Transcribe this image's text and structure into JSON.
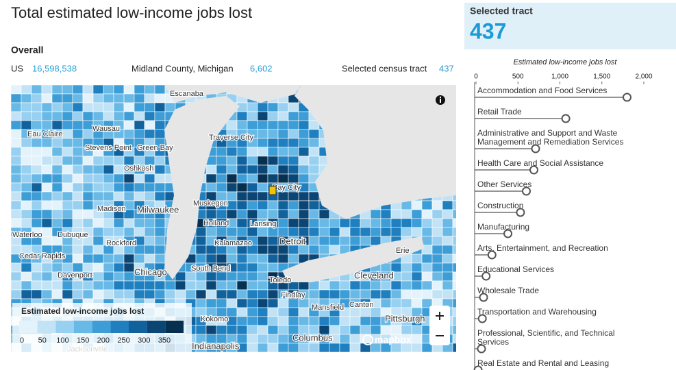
{
  "header": {
    "title": "Total estimated low-income jobs lost"
  },
  "overall": {
    "heading": "Overall",
    "items": [
      {
        "label": "US",
        "value": "16,598,538"
      },
      {
        "label": "Midland County, Michigan",
        "value": "6,602"
      },
      {
        "label": "Selected census tract",
        "value": "437"
      }
    ]
  },
  "selected": {
    "label": "Selected tract",
    "value": "437"
  },
  "map": {
    "legend_title": "Estimated low-income jobs lost",
    "legend_ticks": [
      0,
      50,
      100,
      150,
      200,
      250,
      300,
      350
    ],
    "legend_colors": [
      "#e4f2fb",
      "#c2e3f6",
      "#97d0f0",
      "#69b9e6",
      "#3d9dd6",
      "#1f7fbf",
      "#11619c",
      "#0a4574",
      "#062f50"
    ],
    "attribution": "mapbox",
    "cities": [
      "Escanaba",
      "Eau Claire",
      "Wausau",
      "Stevens Point",
      "Green Bay",
      "Oshkosh",
      "Traverse City",
      "Bay City",
      "Muskegon",
      "Milwaukee",
      "Madison",
      "Holland",
      "Lansing",
      "Waterloo",
      "Dubuque",
      "Rockford",
      "Kalamazoo",
      "Detroit",
      "Erie",
      "Cedar Rapids",
      "Davenport",
      "Chicago",
      "South Bend",
      "Toledo",
      "Cleveland",
      "Findlay",
      "Mansfield",
      "Canton",
      "Pittsburgh",
      "Kokomo",
      "Columbus",
      "Indianapolis",
      "Jacksonville"
    ]
  },
  "chart_data": {
    "type": "lollipop",
    "title": "Estimated low-income jobs lost",
    "categories": [
      "Accommodation and Food Services",
      "Retail Trade",
      "Administrative and Support and Waste Management and Remediation Services",
      "Health Care and Social Assistance",
      "Other Services",
      "Construction",
      "Manufacturing",
      "Arts, Entertainment, and Recreation",
      "Educational Services",
      "Wholesale Trade",
      "Transportation and Warehousing",
      "Professional, Scientific, and Technical Services",
      "Real Estate and Rental and Leasing"
    ],
    "values": [
      1800,
      1070,
      710,
      690,
      600,
      530,
      380,
      190,
      120,
      90,
      75,
      65,
      25
    ],
    "xlim": [
      0,
      2100
    ],
    "xticks": [
      0,
      500,
      {
        "value": 1000,
        "label": "1,000"
      },
      {
        "value": 1500,
        "label": "1,500"
      },
      {
        "value": 2000,
        "label": "2,000"
      }
    ]
  }
}
